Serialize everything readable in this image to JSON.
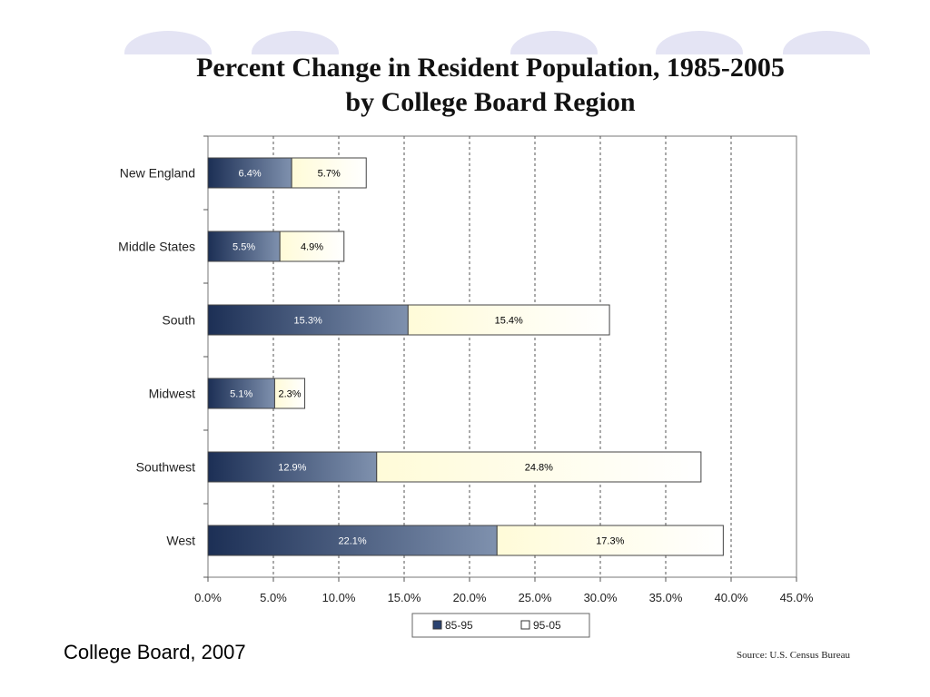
{
  "chart_data": {
    "type": "bar",
    "orientation": "horizontal",
    "stacked": true,
    "title": "Percent Change in Resident Population, 1985-2005\nby College Board Region",
    "title_lines": [
      "Percent Change in Resident Population, 1985-2005",
      "by College Board Region"
    ],
    "categories": [
      "New England",
      "Middle States",
      "South",
      "Midwest",
      "Southwest",
      "West"
    ],
    "series": [
      {
        "name": "85-95",
        "values": [
          6.4,
          5.5,
          15.3,
          5.1,
          12.9,
          22.1
        ],
        "labels": [
          "6.4%",
          "5.5%",
          "15.3%",
          "5.1%",
          "12.9%",
          "22.1%"
        ],
        "color": "#2a4270"
      },
      {
        "name": "95-05",
        "values": [
          5.7,
          4.9,
          15.4,
          2.3,
          24.8,
          17.3
        ],
        "labels": [
          "5.7%",
          "4.9%",
          "15.4%",
          "2.3%",
          "24.8%",
          "17.3%"
        ],
        "color": "#fffde0"
      }
    ],
    "xlim": [
      0,
      45
    ],
    "xticks": [
      0,
      5,
      10,
      15,
      20,
      25,
      30,
      35,
      40,
      45
    ],
    "xtick_labels": [
      "0.0%",
      "5.0%",
      "10.0%",
      "15.0%",
      "20.0%",
      "25.0%",
      "30.0%",
      "35.0%",
      "40.0%",
      "45.0%"
    ],
    "grid": "vertical dashed",
    "legend_position": "bottom"
  },
  "footer": {
    "left_text": "College Board, 2007",
    "source_text": "Source: U.S. Census Bureau"
  },
  "colors": {
    "decoration": "#e4e4f4",
    "bar_border": "#444444",
    "grid": "#555555"
  }
}
